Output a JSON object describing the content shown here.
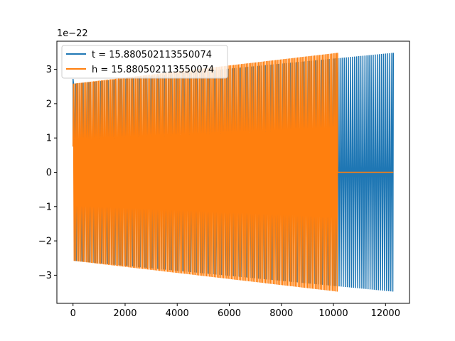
{
  "chart_data": {
    "type": "line",
    "title": "",
    "xlabel": "",
    "ylabel": "",
    "offset_text": "1e−22",
    "xlim": [
      -620,
      12920
    ],
    "ylim": [
      -3.82,
      3.82
    ],
    "xticks": [
      0,
      2000,
      4000,
      6000,
      8000,
      10000,
      12000
    ],
    "xtick_labels": [
      "0",
      "2000",
      "4000",
      "6000",
      "8000",
      "10000",
      "12000"
    ],
    "yticks": [
      -3,
      -2,
      -1,
      0,
      1,
      2,
      3
    ],
    "ytick_labels": [
      "−3",
      "−2",
      "−1",
      "0",
      "1",
      "2",
      "3"
    ],
    "grid": false,
    "legend_position": "upper-left",
    "series": [
      {
        "name": "t = 15.880502113550074",
        "color": "#1f77b4",
        "x_start": 0,
        "x_end": 12300,
        "cycles": 155,
        "amplitude_start": 2.58,
        "amplitude_end": 3.48,
        "initial_value": 0.75,
        "initial_peak": 2.72
      },
      {
        "name": "h = 15.880502113550074",
        "color": "#ff7f0e",
        "x_start": 0,
        "x_end": 10160,
        "cycles": 170,
        "amplitude_start": 2.58,
        "amplitude_end": 3.48,
        "initial_value": 0.75,
        "tail_x_end": 12300,
        "tail_value": 0
      }
    ]
  }
}
